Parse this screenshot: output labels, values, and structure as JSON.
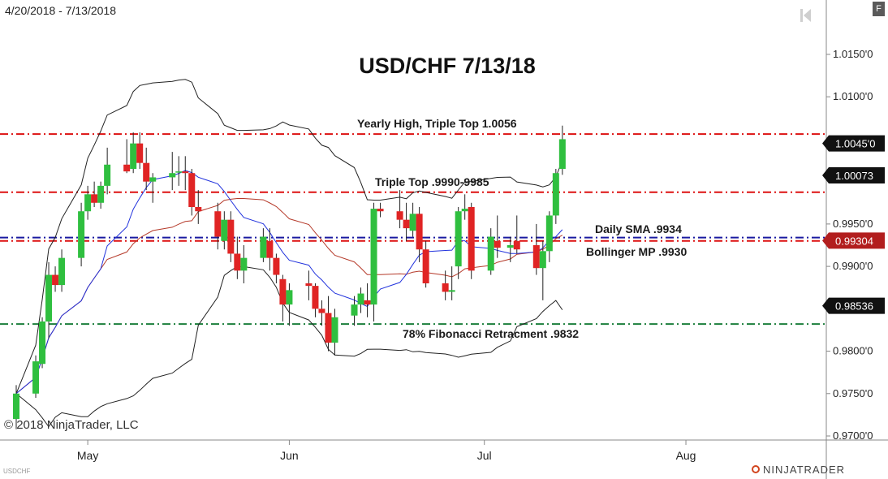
{
  "header": {
    "date_range": "4/20/2018 - 7/13/2018",
    "f_button": "F"
  },
  "footer": {
    "copyright": "© 2018 NinjaTrader, LLC",
    "symbol": "USDCHF",
    "brand": "NINJATRADER"
  },
  "icons": [
    "rewind-icon",
    "ninjatrader-logo-icon"
  ],
  "colors": {
    "bull": "#2fbf3f",
    "bear": "#e02424",
    "resistance_line": "#dd1111",
    "sma_line": "#1a1aa0",
    "fib_line": "#1c7f3c",
    "bollinger_band": "#222222",
    "sma_blue": "#2233dd",
    "sma_red": "#b53a2a",
    "price_badge_dark": "#111111",
    "price_badge_red": "#b21e1e"
  },
  "chart_data": {
    "type": "candlestick",
    "title": "USD/CHF 7/13/18",
    "x_ticks": [
      "May",
      "Jun",
      "Jul",
      "Aug"
    ],
    "y_ticks": [
      "1.0150'0",
      "1.0100'0",
      "1.0045'0",
      "1.00073",
      "0.9950'0",
      "0.99304",
      "0.9900'0",
      "0.98536",
      "0.9800'0",
      "0.9750'0",
      "0.9700'0"
    ],
    "ylim": [
      0.97,
      1.018
    ],
    "price_badges": [
      {
        "label": "1.0045'0",
        "value": 1.0045,
        "style": "dark"
      },
      {
        "label": "1.00073",
        "value": 1.00073,
        "style": "dark"
      },
      {
        "label": "0.99304",
        "value": 0.99304,
        "style": "red"
      },
      {
        "label": "0.98536",
        "value": 0.98536,
        "style": "dark"
      }
    ],
    "horizontal_lines": [
      {
        "label": "Yearly High, Triple Top 1.0056",
        "value": 1.0056,
        "style": "resistance"
      },
      {
        "label": "Triple Top .9990-9985",
        "value": 0.99875,
        "style": "resistance"
      },
      {
        "label": "Daily SMA .9934",
        "value": 0.9934,
        "style": "sma"
      },
      {
        "label": "Bollinger MP .9930",
        "value": 0.993,
        "style": "resistance"
      },
      {
        "label": "78% Fibonacci Retracment .9832",
        "value": 0.9832,
        "style": "fib"
      }
    ],
    "candles": [
      {
        "date": "2018-04-20",
        "o": 0.972,
        "h": 0.976,
        "l": 0.9708,
        "c": 0.975
      },
      {
        "date": "2018-04-23",
        "o": 0.975,
        "h": 0.9795,
        "l": 0.9745,
        "c": 0.9788
      },
      {
        "date": "2018-04-24",
        "o": 0.9785,
        "h": 0.984,
        "l": 0.978,
        "c": 0.9835
      },
      {
        "date": "2018-04-25",
        "o": 0.9835,
        "h": 0.9905,
        "l": 0.9815,
        "c": 0.989
      },
      {
        "date": "2018-04-26",
        "o": 0.989,
        "h": 0.99,
        "l": 0.987,
        "c": 0.9878
      },
      {
        "date": "2018-04-27",
        "o": 0.9878,
        "h": 0.992,
        "l": 0.987,
        "c": 0.991
      },
      {
        "date": "2018-04-30",
        "o": 0.991,
        "h": 0.9975,
        "l": 0.99,
        "c": 0.9965
      },
      {
        "date": "2018-05-01",
        "o": 0.9965,
        "h": 0.9995,
        "l": 0.9955,
        "c": 0.9985
      },
      {
        "date": "2018-05-02",
        "o": 0.9985,
        "h": 1.0,
        "l": 0.997,
        "c": 0.9975
      },
      {
        "date": "2018-05-03",
        "o": 0.9975,
        "h": 1.0,
        "l": 0.9968,
        "c": 0.9995
      },
      {
        "date": "2018-05-04",
        "o": 0.9995,
        "h": 1.004,
        "l": 0.9985,
        "c": 1.002
      },
      {
        "date": "2018-05-07",
        "o": 1.002,
        "h": 1.005,
        "l": 1.001,
        "c": 1.0012
      },
      {
        "date": "2018-05-08",
        "o": 1.0015,
        "h": 1.0058,
        "l": 1.001,
        "c": 1.0045
      },
      {
        "date": "2018-05-09",
        "o": 1.0045,
        "h": 1.0058,
        "l": 1.0015,
        "c": 1.0022
      },
      {
        "date": "2018-05-10",
        "o": 1.0022,
        "h": 1.004,
        "l": 0.999,
        "c": 1.0
      },
      {
        "date": "2018-05-11",
        "o": 1.0,
        "h": 1.001,
        "l": 0.9975,
        "c": 1.0005
      },
      {
        "date": "2018-05-14",
        "o": 1.0005,
        "h": 1.0035,
        "l": 0.999,
        "c": 1.001
      },
      {
        "date": "2018-05-15",
        "o": 1.0012,
        "h": 1.003,
        "l": 0.9995,
        "c": 1.0012
      },
      {
        "date": "2018-05-16",
        "o": 1.0012,
        "h": 1.003,
        "l": 0.999,
        "c": 1.001
      },
      {
        "date": "2018-05-17",
        "o": 1.001,
        "h": 1.0015,
        "l": 0.996,
        "c": 0.997
      },
      {
        "date": "2018-05-18",
        "o": 0.997,
        "h": 0.999,
        "l": 0.995,
        "c": 0.9965
      },
      {
        "date": "2018-05-21",
        "o": 0.9965,
        "h": 0.9975,
        "l": 0.992,
        "c": 0.9935
      },
      {
        "date": "2018-05-22",
        "o": 0.993,
        "h": 0.9965,
        "l": 0.992,
        "c": 0.9955
      },
      {
        "date": "2018-05-23",
        "o": 0.9955,
        "h": 0.9965,
        "l": 0.9905,
        "c": 0.9915
      },
      {
        "date": "2018-05-24",
        "o": 0.9915,
        "h": 0.9935,
        "l": 0.9885,
        "c": 0.9895
      },
      {
        "date": "2018-05-25",
        "o": 0.9895,
        "h": 0.9925,
        "l": 0.988,
        "c": 0.991
      },
      {
        "date": "2018-05-28",
        "o": 0.991,
        "h": 0.9945,
        "l": 0.9905,
        "c": 0.9935
      },
      {
        "date": "2018-05-29",
        "o": 0.993,
        "h": 0.9945,
        "l": 0.9895,
        "c": 0.991
      },
      {
        "date": "2018-05-30",
        "o": 0.991,
        "h": 0.9915,
        "l": 0.988,
        "c": 0.989
      },
      {
        "date": "2018-05-31",
        "o": 0.9885,
        "h": 0.989,
        "l": 0.9835,
        "c": 0.9855
      },
      {
        "date": "2018-06-01",
        "o": 0.9855,
        "h": 0.988,
        "l": 0.983,
        "c": 0.9872
      },
      {
        "date": "2018-06-04",
        "o": 0.988,
        "h": 0.9895,
        "l": 0.986,
        "c": 0.9877
      },
      {
        "date": "2018-06-05",
        "o": 0.9877,
        "h": 0.988,
        "l": 0.984,
        "c": 0.985
      },
      {
        "date": "2018-06-06",
        "o": 0.985,
        "h": 0.986,
        "l": 0.983,
        "c": 0.9845
      },
      {
        "date": "2018-06-07",
        "o": 0.9845,
        "h": 0.9865,
        "l": 0.98,
        "c": 0.981
      },
      {
        "date": "2018-06-08",
        "o": 0.981,
        "h": 0.985,
        "l": 0.9795,
        "c": 0.984
      },
      {
        "date": "2018-06-11",
        "o": 0.9842,
        "h": 0.9865,
        "l": 0.983,
        "c": 0.9855
      },
      {
        "date": "2018-06-12",
        "o": 0.9855,
        "h": 0.9875,
        "l": 0.9845,
        "c": 0.9868
      },
      {
        "date": "2018-06-13",
        "o": 0.986,
        "h": 0.988,
        "l": 0.984,
        "c": 0.9855
      },
      {
        "date": "2018-06-14",
        "o": 0.9855,
        "h": 0.9975,
        "l": 0.9835,
        "c": 0.9968
      },
      {
        "date": "2018-06-15",
        "o": 0.9968,
        "h": 0.9975,
        "l": 0.9958,
        "c": 0.9965
      },
      {
        "date": "2018-06-18",
        "o": 0.9965,
        "h": 0.999,
        "l": 0.9945,
        "c": 0.9955
      },
      {
        "date": "2018-06-19",
        "o": 0.9955,
        "h": 0.9975,
        "l": 0.993,
        "c": 0.9945
      },
      {
        "date": "2018-06-20",
        "o": 0.9942,
        "h": 0.9975,
        "l": 0.9935,
        "c": 0.9962
      },
      {
        "date": "2018-06-21",
        "o": 0.9962,
        "h": 0.997,
        "l": 0.9905,
        "c": 0.992
      },
      {
        "date": "2018-06-22",
        "o": 0.992,
        "h": 0.993,
        "l": 0.9875,
        "c": 0.988
      },
      {
        "date": "2018-06-25",
        "o": 0.988,
        "h": 0.9895,
        "l": 0.986,
        "c": 0.987
      },
      {
        "date": "2018-06-26",
        "o": 0.987,
        "h": 0.99,
        "l": 0.986,
        "c": 0.9872
      },
      {
        "date": "2018-06-27",
        "o": 0.99,
        "h": 0.997,
        "l": 0.9885,
        "c": 0.9965
      },
      {
        "date": "2018-06-28",
        "o": 0.9965,
        "h": 0.9985,
        "l": 0.9955,
        "c": 0.9968
      },
      {
        "date": "2018-06-29",
        "o": 0.997,
        "h": 0.9975,
        "l": 0.9885,
        "c": 0.9895
      },
      {
        "date": "2018-07-02",
        "o": 0.9895,
        "h": 0.9945,
        "l": 0.989,
        "c": 0.9935
      },
      {
        "date": "2018-07-03",
        "o": 0.993,
        "h": 0.996,
        "l": 0.991,
        "c": 0.9922
      },
      {
        "date": "2018-07-05",
        "o": 0.9922,
        "h": 0.9935,
        "l": 0.9905,
        "c": 0.9925
      },
      {
        "date": "2018-07-06",
        "o": 0.993,
        "h": 0.996,
        "l": 0.9915,
        "c": 0.992
      },
      {
        "date": "2018-07-09",
        "o": 0.9925,
        "h": 0.995,
        "l": 0.989,
        "c": 0.9898
      },
      {
        "date": "2018-07-10",
        "o": 0.9898,
        "h": 0.993,
        "l": 0.986,
        "c": 0.9918
      },
      {
        "date": "2018-07-11",
        "o": 0.9918,
        "h": 0.9965,
        "l": 0.9905,
        "c": 0.996
      },
      {
        "date": "2018-07-12",
        "o": 0.996,
        "h": 1.0015,
        "l": 0.995,
        "c": 1.001
      },
      {
        "date": "2018-07-13",
        "o": 1.0015,
        "h": 1.0066,
        "l": 1.0008,
        "c": 1.005
      }
    ]
  }
}
